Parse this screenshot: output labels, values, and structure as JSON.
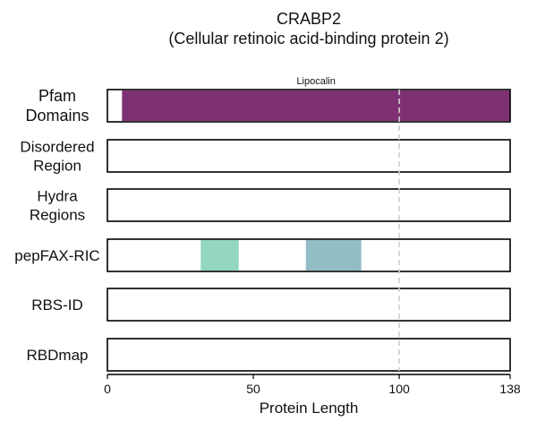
{
  "chart_data": {
    "type": "protein-domain-tracks",
    "title": "CRABP2",
    "subtitle": "(Cellular retinoic acid-binding protein 2)",
    "xlabel": "Protein Length",
    "xlim": [
      0,
      138
    ],
    "xticks": [
      0,
      50,
      100,
      138
    ],
    "reference_line_x": 100,
    "tracks": [
      {
        "label": "Pfam\nDomains",
        "segments": [
          {
            "name": "Lipocalin",
            "start": 5,
            "end": 138,
            "color": "#7f3075"
          }
        ]
      },
      {
        "label": "Disordered\nRegion",
        "segments": []
      },
      {
        "label": "Hydra\nRegions",
        "segments": []
      },
      {
        "label": "pepFAX-RIC",
        "segments": [
          {
            "name": "",
            "start": 32,
            "end": 45,
            "color": "#93d6c2"
          },
          {
            "name": "",
            "start": 68,
            "end": 87,
            "color": "#93bdc5"
          }
        ]
      },
      {
        "label": "RBS-ID",
        "segments": []
      },
      {
        "label": "RBDmap",
        "segments": []
      }
    ]
  }
}
